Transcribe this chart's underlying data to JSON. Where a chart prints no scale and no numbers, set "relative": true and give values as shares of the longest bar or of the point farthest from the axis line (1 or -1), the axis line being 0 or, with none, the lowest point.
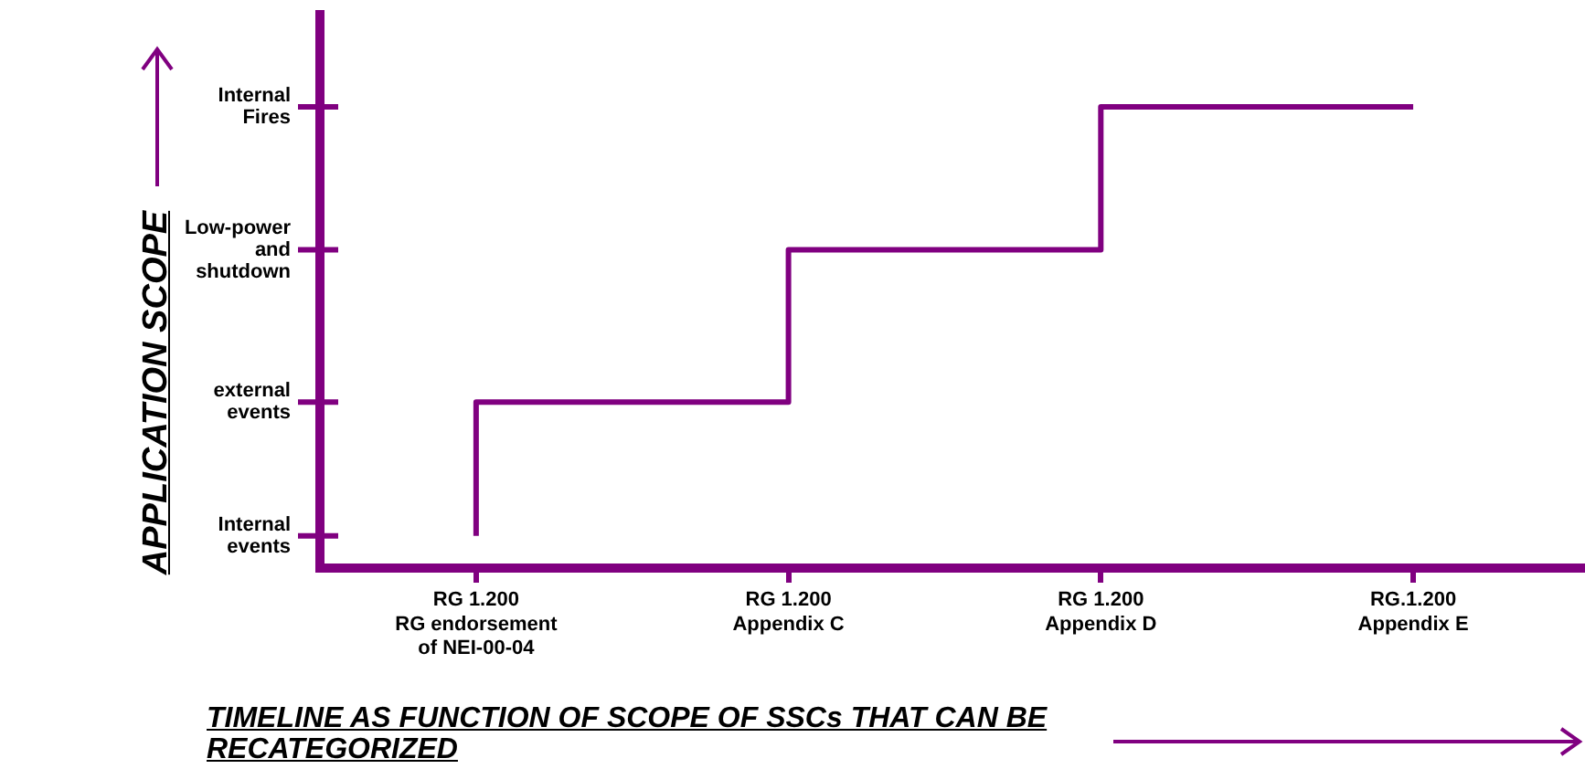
{
  "chart_data": {
    "type": "step",
    "xlabel": "TIMELINE AS FUNCTION OF SCOPE OF SSCs THAT CAN BE RECATEGORIZED",
    "ylabel": "APPLICATION SCOPE",
    "categories": [
      "RG 1.200\nRG endorsement\nof NEI-00-04",
      "RG 1.200\nAppendix C",
      "RG 1.200\nAppendix D",
      "RG.1.200\nAppendix E"
    ],
    "relative": true,
    "series": [
      {
        "color": "#800080",
        "values": [
          0.07,
          0.36,
          0.69,
          1
        ]
      }
    ],
    "annotations": [
      "Internal\nevents",
      "external\nevents",
      "Low-power\nand\nshutdown",
      "Internal\nFires"
    ],
    "grid": false,
    "legend": false,
    "marker": "none",
    "line_style": "solid"
  }
}
